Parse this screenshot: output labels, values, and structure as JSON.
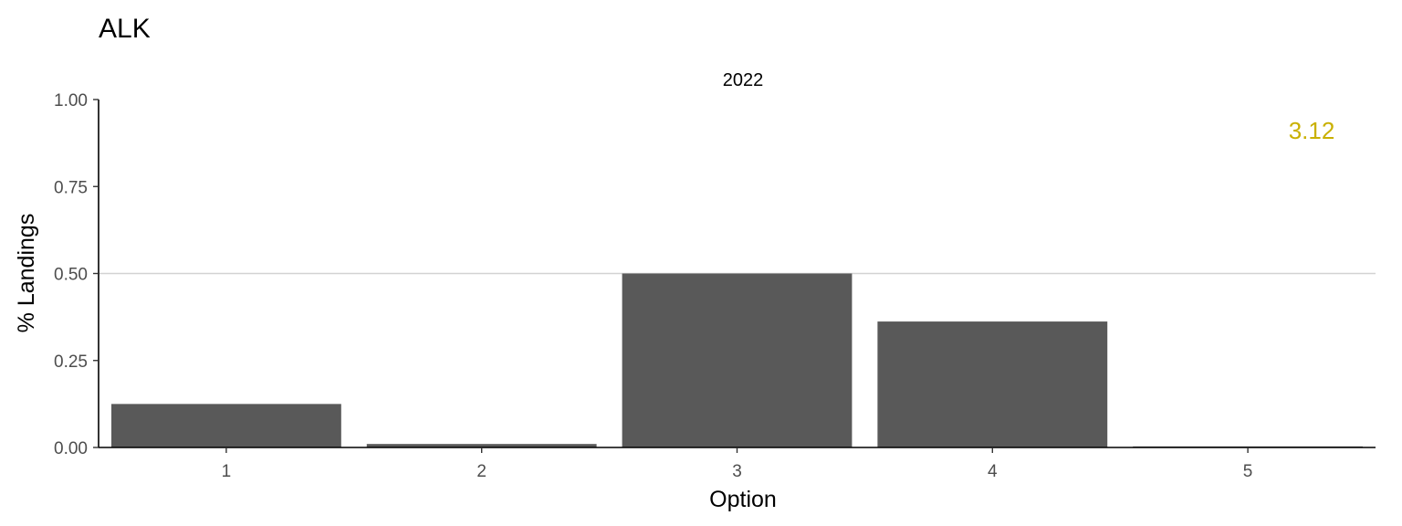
{
  "chart_data": {
    "type": "bar",
    "title": "ALK",
    "facet_label": "2022",
    "xlabel": "Option",
    "ylabel": "% Landings",
    "categories": [
      "1",
      "2",
      "3",
      "4",
      "5"
    ],
    "values": [
      0.125,
      0.01,
      0.5,
      0.362,
      0.003
    ],
    "ylim": [
      0,
      1
    ],
    "yticks": [
      0,
      0.25,
      0.5,
      0.75,
      1
    ],
    "ytick_labels": [
      "0.00",
      "0.25",
      "0.50",
      "0.75",
      "1.00"
    ],
    "reference_line": 0.5,
    "annotation": "3.12",
    "grid": false,
    "legend": "none",
    "colors": {
      "bar": "#595959",
      "annotation": "#c9b000",
      "reference_line": "#d3d3d3",
      "axis": "#000000"
    }
  }
}
